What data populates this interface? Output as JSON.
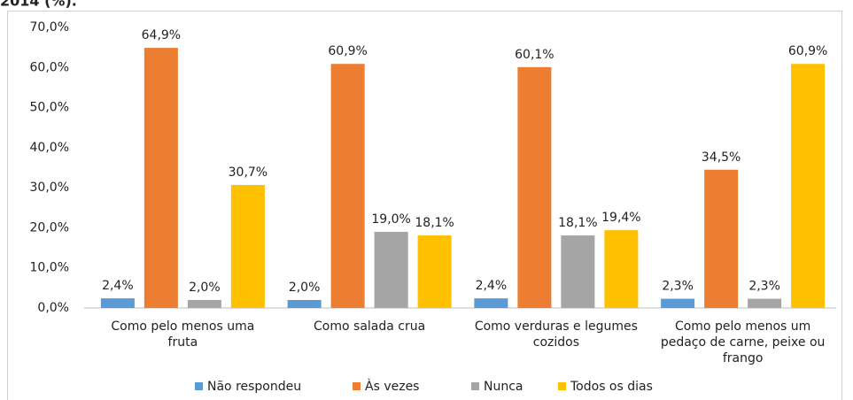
{
  "chart_data": {
    "type": "bar",
    "title": "2014 (%).",
    "categories": [
      "Como pelo menos uma fruta",
      "Como salada crua",
      "Como verduras e legumes cozidos",
      "Como pelo menos um pedaço de carne, peixe  ou frango"
    ],
    "series": [
      {
        "name": "Não respondeu",
        "color": "#5b9bd5",
        "values": [
          2.4,
          2.0,
          2.4,
          2.3
        ],
        "value_labels": [
          "2,4%",
          "2,0%",
          "2,4%",
          "2,3%"
        ]
      },
      {
        "name": "Às vezes",
        "color": "#ed7d31",
        "values": [
          64.9,
          60.9,
          60.1,
          34.5
        ],
        "value_labels": [
          "64,9%",
          "60,9%",
          "60,1%",
          "34,5%"
        ]
      },
      {
        "name": "Nunca",
        "color": "#a5a5a5",
        "values": [
          2.0,
          19.0,
          18.1,
          2.3
        ],
        "value_labels": [
          "2,0%",
          "19,0%",
          "18,1%",
          "2,3%"
        ]
      },
      {
        "name": "Todos os dias",
        "color": "#ffc000",
        "values": [
          30.7,
          18.1,
          19.4,
          60.9
        ],
        "value_labels": [
          "30,7%",
          "18,1%",
          "19,4%",
          "60,9%"
        ]
      }
    ],
    "ylim": [
      0,
      70
    ],
    "yticks": [
      {
        "value": 0,
        "label": "0,0%"
      },
      {
        "value": 10,
        "label": "10,0%"
      },
      {
        "value": 20,
        "label": "20,0%"
      },
      {
        "value": 30,
        "label": "30,0%"
      },
      {
        "value": 40,
        "label": "40,0%"
      },
      {
        "value": 50,
        "label": "50,0%"
      },
      {
        "value": 60,
        "label": "60,0%"
      },
      {
        "value": 70,
        "label": "70,0%"
      }
    ],
    "legend": "bottom"
  }
}
